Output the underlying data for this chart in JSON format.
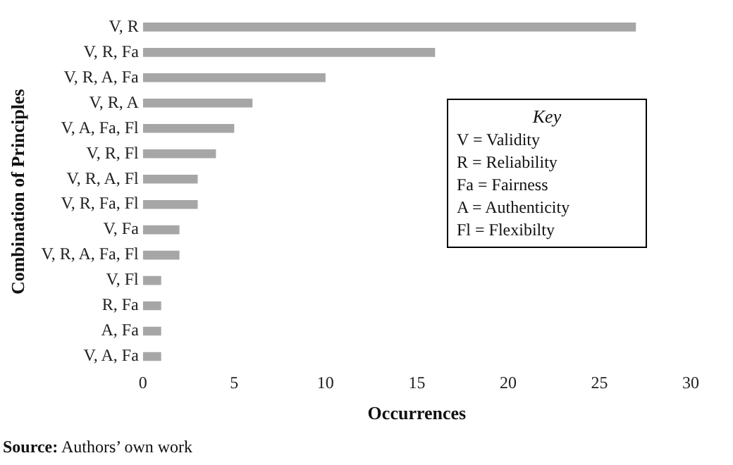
{
  "chart_data": {
    "type": "bar",
    "orientation": "horizontal",
    "xlabel": "Occurrences",
    "ylabel": "Combination of Principles",
    "categories": [
      "V, R",
      "V, R, Fa",
      "V, R, A, Fa",
      "V, R, A",
      "V, A, Fa, Fl",
      "V, R, Fl",
      "V, R, A, Fl",
      "V, R, Fa, Fl",
      "V, Fa",
      "V, R, A, Fa, Fl",
      "V, Fl",
      "R, Fa",
      "A, Fa",
      "V, A, Fa"
    ],
    "values": [
      27,
      16,
      10,
      6,
      5,
      4,
      3,
      3,
      2,
      2,
      1,
      1,
      1,
      1
    ],
    "color": "#a6a6a6",
    "xlim": [
      0,
      30
    ],
    "xticks": [
      0,
      5,
      10,
      15,
      20,
      25,
      30
    ],
    "grid": false,
    "legend": false,
    "annotations": [
      "Key",
      "V = Validity",
      "R = Reliability",
      "Fa = Fairness",
      "A = Authenticity",
      "Fl = Flexibilty",
      "Source: Authors’ own work"
    ]
  }
}
